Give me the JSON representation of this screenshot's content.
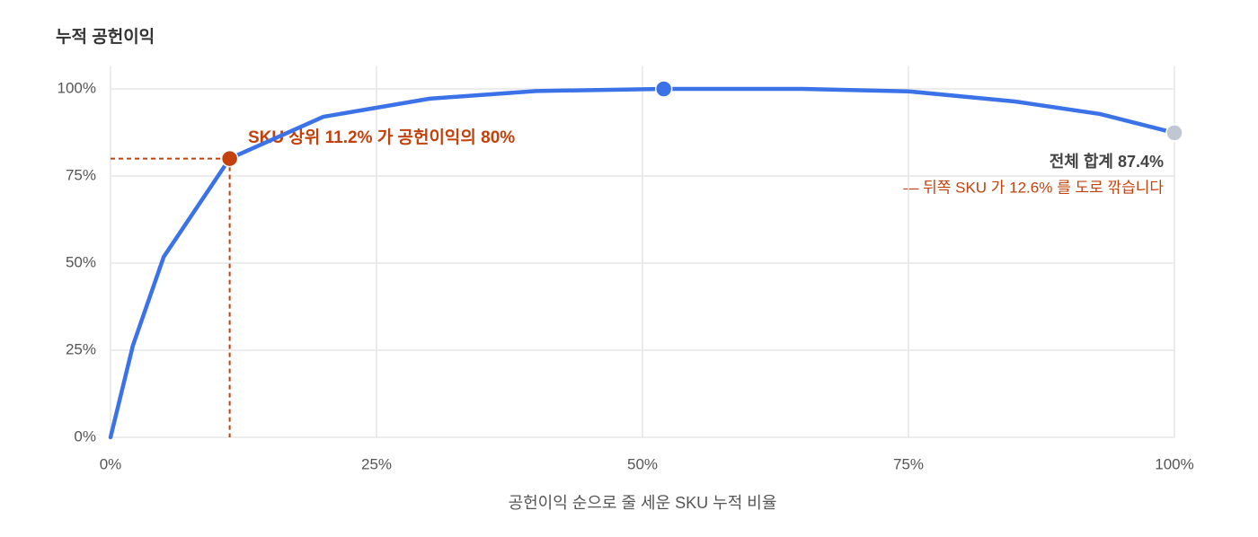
{
  "chart_data": {
    "type": "line",
    "title": "누적 공헌이익",
    "x_label": "공헌이익 순으로 줄 세운 SKU 누적 비율",
    "x": [
      0,
      2.1,
      5,
      11.2,
      20,
      30,
      40,
      52,
      65,
      75,
      85,
      93,
      100
    ],
    "series": [
      {
        "name": "누적 공헌이익",
        "color": "#3b72e8",
        "values": [
          0,
          26.3,
          51.8,
          80,
          92,
          97.2,
          99.4,
          100,
          100,
          99.3,
          96.4,
          92.8,
          87.4
        ]
      }
    ],
    "xlim": [
      0,
      100
    ],
    "xticks": [
      {
        "value": 0,
        "label": "0%"
      },
      {
        "value": 25,
        "label": "25%"
      },
      {
        "value": 50,
        "label": "50%"
      },
      {
        "value": 75,
        "label": "75%"
      },
      {
        "value": 100,
        "label": "100%"
      }
    ],
    "ylim": [
      0,
      100
    ],
    "yticks": [
      {
        "value": 0,
        "label": "0%"
      },
      {
        "value": 25,
        "label": "25%"
      },
      {
        "value": 50,
        "label": "50%"
      },
      {
        "value": 75,
        "label": "75%"
      },
      {
        "value": 100,
        "label": "100%"
      }
    ],
    "grid": true,
    "markers": [
      {
        "index": 3,
        "color": "#c2410c",
        "guides": true
      },
      {
        "index": 7,
        "color": "#3b72e8"
      },
      {
        "index": 12,
        "color": "#c0c6d2"
      }
    ],
    "annotations": [
      "SKU 상위 11.2% 가 공헌이익의 80%",
      "전체 합계 87.4%",
      "— 뒤쪽 SKU 가 12.6% 를 도로 깎습니다"
    ]
  }
}
